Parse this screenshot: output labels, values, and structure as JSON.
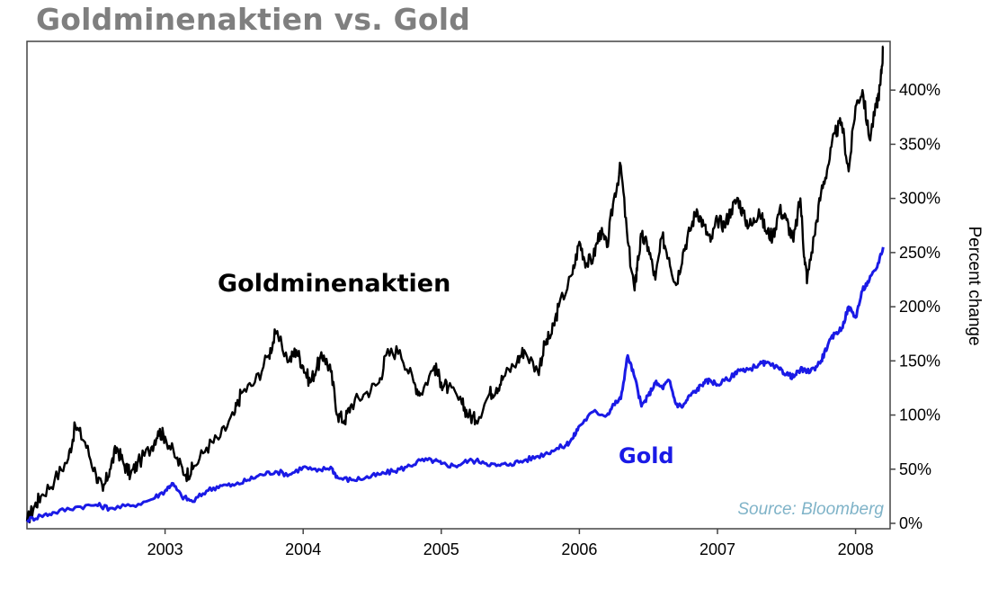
{
  "title": "Goldminenaktien vs. Gold",
  "chart_data": {
    "type": "line",
    "title": "Goldminenaktien vs. Gold",
    "xlabel": "",
    "ylabel": "Percent change",
    "x_ticks": [
      "2003",
      "2004",
      "2005",
      "2006",
      "2007",
      "2008"
    ],
    "x_tick_values": [
      2003,
      2004,
      2005,
      2006,
      2007,
      2008
    ],
    "xlim": [
      2002.0,
      2008.25
    ],
    "y_ticks": [
      "0%",
      "50%",
      "100%",
      "150%",
      "200%",
      "250%",
      "300%",
      "350%",
      "400%"
    ],
    "y_tick_values": [
      0,
      50,
      100,
      150,
      200,
      250,
      300,
      350,
      400
    ],
    "ylim": [
      -5,
      445
    ],
    "y_axis_position": "right",
    "grid": false,
    "source": "Source: Bloomberg",
    "series": [
      {
        "name": "Goldminenaktien",
        "color": "#000000",
        "x": [
          2002.0,
          2002.05,
          2002.1,
          2002.2,
          2002.3,
          2002.35,
          2002.42,
          2002.5,
          2002.55,
          2002.6,
          2002.65,
          2002.7,
          2002.75,
          2002.8,
          2002.9,
          2002.95,
          2003.0,
          2003.08,
          2003.15,
          2003.2,
          2003.3,
          2003.4,
          2003.5,
          2003.55,
          2003.65,
          2003.75,
          2003.8,
          2003.9,
          2003.95,
          2004.0,
          2004.05,
          2004.1,
          2004.15,
          2004.2,
          2004.25,
          2004.3,
          2004.35,
          2004.45,
          2004.55,
          2004.6,
          2004.7,
          2004.8,
          2004.85,
          2004.95,
          2005.0,
          2005.05,
          2005.15,
          2005.2,
          2005.25,
          2005.35,
          2005.4,
          2005.45,
          2005.55,
          2005.6,
          2005.7,
          2005.75,
          2005.8,
          2005.85,
          2005.95,
          2006.0,
          2006.05,
          2006.1,
          2006.15,
          2006.2,
          2006.25,
          2006.3,
          2006.35,
          2006.4,
          2006.42,
          2006.45,
          2006.5,
          2006.55,
          2006.6,
          2006.65,
          2006.7,
          2006.75,
          2006.8,
          2006.85,
          2006.9,
          2006.95,
          2007.0,
          2007.05,
          2007.1,
          2007.15,
          2007.2,
          2007.25,
          2007.3,
          2007.35,
          2007.4,
          2007.45,
          2007.5,
          2007.55,
          2007.6,
          2007.63,
          2007.65,
          2007.7,
          2007.75,
          2007.8,
          2007.85,
          2007.9,
          2007.95,
          2008.0,
          2008.05,
          2008.1,
          2008.15,
          2008.18,
          2008.2
        ],
        "y": [
          2,
          15,
          25,
          40,
          60,
          90,
          75,
          45,
          30,
          50,
          70,
          55,
          45,
          55,
          70,
          85,
          80,
          60,
          45,
          50,
          70,
          80,
          100,
          120,
          130,
          155,
          175,
          150,
          160,
          145,
          130,
          145,
          155,
          140,
          100,
          95,
          110,
          120,
          130,
          155,
          160,
          130,
          120,
          145,
          130,
          125,
          110,
          100,
          95,
          120,
          125,
          135,
          150,
          160,
          140,
          165,
          175,
          200,
          230,
          260,
          240,
          245,
          270,
          255,
          300,
          330,
          260,
          215,
          240,
          265,
          255,
          225,
          265,
          245,
          220,
          250,
          270,
          290,
          275,
          260,
          280,
          275,
          290,
          300,
          280,
          275,
          290,
          270,
          265,
          290,
          280,
          260,
          300,
          245,
          225,
          265,
          305,
          330,
          360,
          370,
          325,
          385,
          400,
          355,
          385,
          405,
          440
        ]
      },
      {
        "name": "Gold",
        "color": "#1a1ae6",
        "x": [
          2002.0,
          2002.1,
          2002.2,
          2002.35,
          2002.5,
          2002.6,
          2002.75,
          2002.9,
          2003.0,
          2003.05,
          2003.12,
          2003.2,
          2003.3,
          2003.4,
          2003.5,
          2003.6,
          2003.7,
          2003.8,
          2003.9,
          2004.0,
          2004.1,
          2004.2,
          2004.25,
          2004.35,
          2004.45,
          2004.55,
          2004.65,
          2004.75,
          2004.85,
          2004.95,
          2005.0,
          2005.1,
          2005.2,
          2005.3,
          2005.4,
          2005.5,
          2005.6,
          2005.7,
          2005.8,
          2005.9,
          2005.95,
          2006.0,
          2006.1,
          2006.2,
          2006.25,
          2006.3,
          2006.35,
          2006.4,
          2006.45,
          2006.5,
          2006.55,
          2006.6,
          2006.65,
          2006.7,
          2006.75,
          2006.8,
          2006.85,
          2006.9,
          2006.95,
          2007.0,
          2007.1,
          2007.15,
          2007.2,
          2007.3,
          2007.35,
          2007.45,
          2007.5,
          2007.55,
          2007.6,
          2007.65,
          2007.7,
          2007.75,
          2007.8,
          2007.85,
          2007.9,
          2007.95,
          2008.0,
          2008.05,
          2008.1,
          2008.15,
          2008.2
        ],
        "y": [
          3,
          7,
          10,
          15,
          17,
          14,
          16,
          22,
          30,
          37,
          25,
          20,
          30,
          35,
          35,
          40,
          45,
          48,
          45,
          52,
          48,
          52,
          42,
          40,
          42,
          45,
          48,
          52,
          58,
          58,
          55,
          53,
          58,
          57,
          53,
          55,
          58,
          62,
          67,
          72,
          78,
          90,
          103,
          100,
          110,
          115,
          155,
          135,
          108,
          118,
          130,
          125,
          132,
          110,
          108,
          118,
          123,
          130,
          132,
          128,
          135,
          142,
          140,
          147,
          148,
          142,
          138,
          135,
          142,
          140,
          143,
          150,
          165,
          175,
          180,
          200,
          190,
          215,
          225,
          235,
          255
        ]
      }
    ]
  },
  "annotations": {
    "series_label_1": "Goldminenaktien",
    "series_label_2": "Gold"
  }
}
